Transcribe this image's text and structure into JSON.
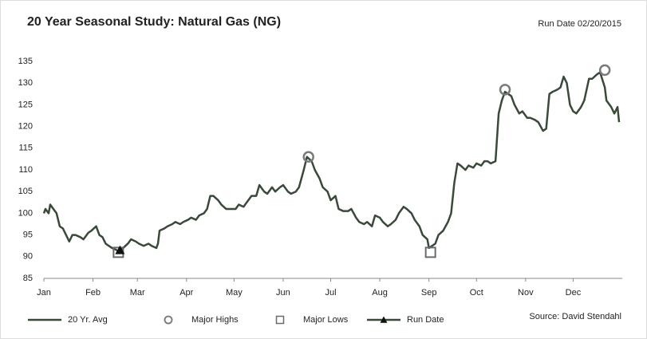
{
  "chart_data": {
    "type": "line",
    "title": "20 Year Seasonal Study: Natural Gas (NG)",
    "subtitle": "Run Date 02/20/2015",
    "source": "Source: David Stendahl",
    "xlim": [
      0,
      365
    ],
    "xticks": [
      {
        "value": 0,
        "label": "Jan"
      },
      {
        "value": 31,
        "label": "Feb"
      },
      {
        "value": 59,
        "label": "Mar"
      },
      {
        "value": 90,
        "label": "Apr"
      },
      {
        "value": 120,
        "label": "May"
      },
      {
        "value": 151,
        "label": "Jun"
      },
      {
        "value": 181,
        "label": "Jul"
      },
      {
        "value": 212,
        "label": "Aug"
      },
      {
        "value": 243,
        "label": "Sep"
      },
      {
        "value": 273,
        "label": "Oct"
      },
      {
        "value": 304,
        "label": "Nov"
      },
      {
        "value": 334,
        "label": "Dec"
      }
    ],
    "ylim": [
      85,
      135
    ],
    "yticks": [
      85,
      90,
      95,
      100,
      105,
      110,
      115,
      120,
      125,
      130,
      135
    ],
    "grid": false,
    "legend": "bottom",
    "series": [
      {
        "name": "20 Yr. Avg",
        "color": "#3a4a3a",
        "marker": "none",
        "x": [
          0,
          1,
          3,
          4,
          6,
          8,
          10,
          12,
          14,
          16,
          18,
          20,
          23,
          25,
          28,
          30,
          33,
          35,
          37,
          39,
          43,
          46,
          48,
          50,
          53,
          55,
          58,
          60,
          63,
          66,
          68,
          71,
          72,
          73,
          76,
          78,
          81,
          83,
          86,
          88,
          91,
          93,
          96,
          98,
          101,
          103,
          105,
          107,
          110,
          112,
          115,
          118,
          121,
          123,
          126,
          129,
          131,
          134,
          136,
          139,
          141,
          144,
          146,
          149,
          151,
          154,
          156,
          159,
          161,
          164,
          166,
          169,
          171,
          174,
          176,
          179,
          181,
          184,
          186,
          189,
          192,
          194,
          197,
          199,
          202,
          204,
          207,
          209,
          212,
          214,
          217,
          219,
          222,
          224,
          227,
          229,
          232,
          234,
          237,
          239,
          242,
          243,
          245,
          247,
          249,
          252,
          255,
          257,
          259,
          261,
          263,
          266,
          268,
          271,
          273,
          276,
          278,
          280,
          282,
          285,
          287,
          289,
          291,
          293,
          295,
          297,
          300,
          302,
          305,
          307,
          310,
          312,
          315,
          317,
          319,
          321,
          324,
          326,
          328,
          330,
          332,
          334,
          336,
          339,
          341,
          344,
          346,
          349,
          351,
          354,
          355,
          358,
          360,
          362,
          363
        ],
        "values": [
          100,
          101,
          100,
          102,
          101,
          100,
          97,
          96.5,
          95,
          93.5,
          95,
          95,
          94.5,
          94,
          95.5,
          96,
          97,
          95,
          94.5,
          93,
          92,
          91.5,
          91,
          92,
          93,
          94,
          93.5,
          93,
          92.5,
          93,
          92.5,
          92,
          93,
          96,
          96.5,
          97,
          97.5,
          98,
          97.5,
          98,
          98.5,
          99,
          98.5,
          99.5,
          100,
          101,
          104,
          104,
          103,
          102,
          101,
          101,
          101,
          102,
          101.5,
          103,
          104,
          104,
          106.5,
          105,
          104.5,
          106,
          105,
          106,
          106.5,
          105,
          104.5,
          105,
          106,
          110,
          113,
          112,
          110,
          108,
          106,
          105,
          103,
          104,
          101,
          100.5,
          100.5,
          101,
          99,
          98,
          97.5,
          98,
          97,
          99.5,
          99,
          98,
          97,
          97.5,
          98.5,
          100,
          101.5,
          101,
          100,
          98.5,
          97,
          95,
          94,
          92,
          92.5,
          93,
          95,
          96,
          98,
          100,
          107,
          111.5,
          111,
          110,
          111,
          110.5,
          111.5,
          111,
          112,
          112,
          111.5,
          112,
          123,
          126,
          128,
          127.5,
          127,
          125,
          123,
          123.5,
          122,
          122,
          121.5,
          121,
          119,
          119.5,
          127.5,
          128,
          128.5,
          129,
          131.5,
          130,
          125,
          123.5,
          123,
          124.5,
          126,
          131,
          131,
          132,
          132.5,
          129,
          126,
          124.5,
          123,
          124.5,
          121
        ]
      },
      {
        "name": "Major Highs",
        "color": "#7a7a7a",
        "marker": "circle",
        "x": [
          167,
          291,
          354
        ],
        "values": [
          113,
          128.5,
          133
        ]
      },
      {
        "name": "Major Lows",
        "color": "#6a6a6a",
        "marker": "square",
        "x": [
          47,
          244
        ],
        "values": [
          91,
          91
        ]
      },
      {
        "name": "Run Date",
        "color": "#111111",
        "marker": "triangle",
        "x": [
          48
        ],
        "values": [
          91.5
        ]
      }
    ]
  }
}
